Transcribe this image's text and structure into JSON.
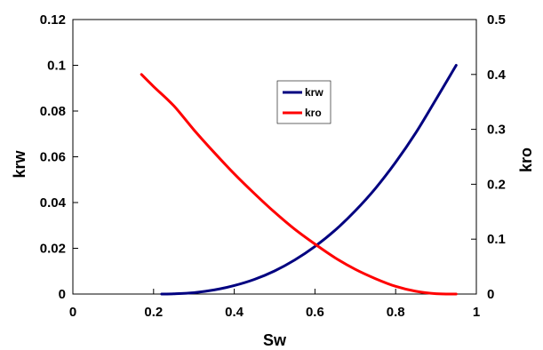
{
  "chart_data": {
    "type": "line",
    "title": "",
    "xlabel": "Sw",
    "ylabel_left": "krw",
    "ylabel_right": "kro",
    "xlim": [
      0,
      1
    ],
    "ylim_left": [
      0,
      0.12
    ],
    "ylim_right": [
      0,
      0.5
    ],
    "x_ticks": [
      "0",
      "0.2",
      "0.4",
      "0.6",
      "0.8",
      "1"
    ],
    "y_left_ticks": [
      "0",
      "0.02",
      "0.04",
      "0.06",
      "0.08",
      "0.1",
      "0.12"
    ],
    "y_right_ticks": [
      "0",
      "0.1",
      "0.2",
      "0.3",
      "0.4",
      "0.5"
    ],
    "grid": false,
    "legend_position": "center-top",
    "series": [
      {
        "name": "krw",
        "axis": "left",
        "color": "#000080",
        "x": [
          0.22,
          0.25,
          0.3,
          0.35,
          0.4,
          0.45,
          0.5,
          0.55,
          0.6,
          0.65,
          0.7,
          0.75,
          0.8,
          0.85,
          0.9,
          0.95
        ],
        "y": [
          0,
          0.0001,
          0.0006,
          0.0018,
          0.0037,
          0.0064,
          0.0101,
          0.0149,
          0.0208,
          0.0279,
          0.0364,
          0.0462,
          0.0576,
          0.0705,
          0.0851,
          0.1
        ]
      },
      {
        "name": "kro",
        "axis": "right",
        "color": "#ff0000",
        "x": [
          0.17,
          0.2,
          0.25,
          0.3,
          0.35,
          0.4,
          0.45,
          0.5,
          0.55,
          0.6,
          0.65,
          0.7,
          0.75,
          0.8,
          0.85,
          0.9,
          0.95
        ],
        "y": [
          0.4,
          0.378,
          0.343,
          0.299,
          0.258,
          0.219,
          0.183,
          0.149,
          0.118,
          0.091,
          0.066,
          0.045,
          0.028,
          0.014,
          0.005,
          0.0006,
          0
        ]
      }
    ]
  }
}
